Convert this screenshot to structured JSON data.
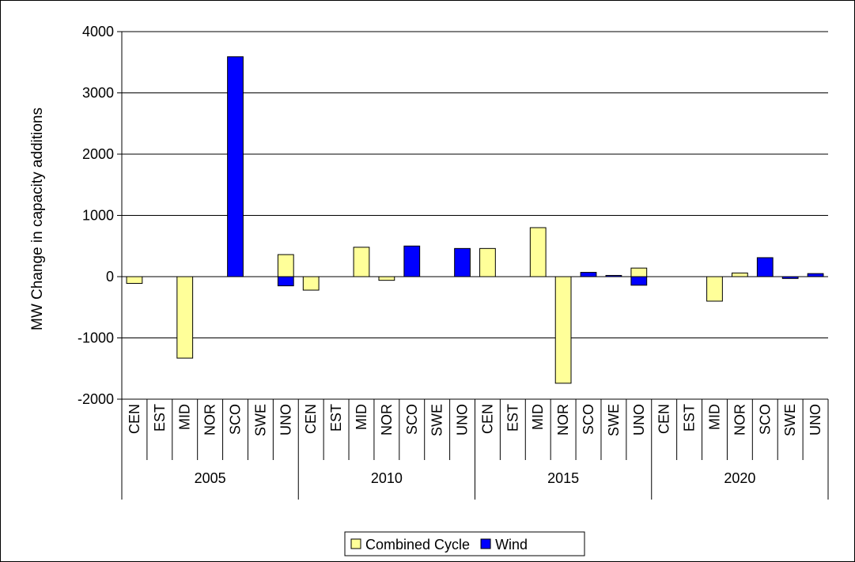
{
  "chart_data": {
    "type": "bar",
    "title": "",
    "xlabel": "",
    "ylabel": "MW Change in capacity additions",
    "ylim": [
      -2000,
      4000
    ],
    "yticks": [
      -2000,
      -1000,
      0,
      1000,
      2000,
      3000,
      4000
    ],
    "grid": true,
    "legend_position": "bottom",
    "groups": [
      "2005",
      "2010",
      "2015",
      "2020"
    ],
    "regions": [
      "CEN",
      "EST",
      "MID",
      "NOR",
      "SCO",
      "SWE",
      "UNO"
    ],
    "series": [
      {
        "name": "Combined Cycle",
        "color": "#ffff99",
        "values": [
          [
            -110,
            0,
            -1330,
            0,
            0,
            0,
            360
          ],
          [
            -220,
            0,
            480,
            -60,
            0,
            0,
            0
          ],
          [
            460,
            0,
            800,
            -1740,
            0,
            0,
            140
          ],
          [
            0,
            0,
            -400,
            60,
            0,
            0,
            0
          ]
        ]
      },
      {
        "name": "Wind",
        "color": "#0000ff",
        "values": [
          [
            0,
            0,
            0,
            0,
            3590,
            0,
            -150
          ],
          [
            0,
            0,
            0,
            0,
            500,
            0,
            460
          ],
          [
            0,
            0,
            0,
            0,
            70,
            20,
            -140
          ],
          [
            0,
            0,
            0,
            0,
            310,
            -30,
            50
          ]
        ]
      }
    ]
  }
}
